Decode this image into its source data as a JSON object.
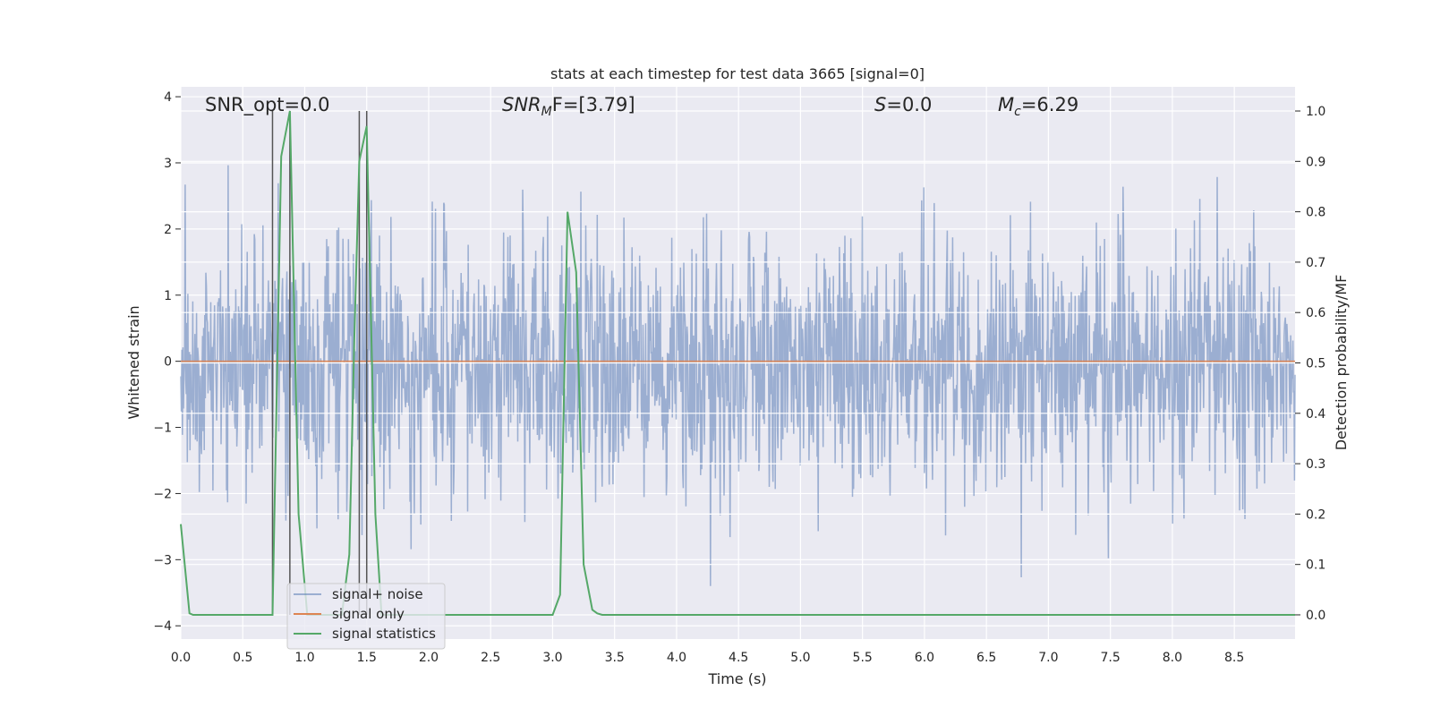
{
  "chart_data": {
    "type": "line",
    "title": "stats at each timestep for test data 3665 [signal=0]",
    "xlabel": "Time (s)",
    "ylabel": "Whitened strain",
    "y2label": "Detection probability/MF",
    "xlim": [
      0,
      8.99
    ],
    "ylim": [
      -4.2,
      4.15
    ],
    "y2lim": [
      -0.048,
      1.048
    ],
    "xticks": [
      "0.0",
      "0.5",
      "1.0",
      "1.5",
      "2.0",
      "2.5",
      "3.0",
      "3.5",
      "4.0",
      "4.5",
      "5.0",
      "5.5",
      "6.0",
      "6.5",
      "7.0",
      "7.5",
      "8.0",
      "8.5"
    ],
    "yticks": [
      "−4",
      "−3",
      "−2",
      "−1",
      "0",
      "1",
      "2",
      "3",
      "4"
    ],
    "y2ticks": [
      "0.0",
      "0.1",
      "0.2",
      "0.3",
      "0.4",
      "0.5",
      "0.6",
      "0.7",
      "0.8",
      "0.9",
      "1.0"
    ],
    "grid": true,
    "legend_position": "lower-left",
    "annotations": {
      "snr_opt": "SNR_opt=0.0",
      "snr_mf_prefix": "SNR",
      "snr_mf_sub": "M",
      "snr_mf_suffix": "F=[3.79]",
      "s_prefix": "S",
      "s_suffix": "=0.0",
      "mc_prefix": "M",
      "mc_sub": "c",
      "mc_suffix": "=6.29"
    },
    "series": [
      {
        "name": "signal+ noise",
        "color": "#4c72b0",
        "opacity": 0.5,
        "n_samples": 2048,
        "amplitude_std": 0.95
      },
      {
        "name": "signal only",
        "color": "#dd8452",
        "x": [
          0,
          8.99
        ],
        "y": [
          0,
          0
        ]
      },
      {
        "name": "signal statistics",
        "color": "#55a868",
        "axis": "right",
        "x": [
          0,
          0.07,
          0.1,
          0.15,
          0.2,
          0.25,
          0.3,
          0.35,
          0.4,
          0.45,
          0.5,
          0.55,
          0.6,
          0.65,
          0.7,
          0.74,
          0.81,
          0.88,
          0.95,
          1.02,
          1.1,
          1.15,
          1.2,
          1.25,
          1.3,
          1.36,
          1.4,
          1.44,
          1.5,
          1.57,
          1.62,
          1.7,
          2.0,
          2.5,
          2.9,
          3.0,
          3.06,
          3.12,
          3.19,
          3.25,
          3.32,
          3.36,
          3.4,
          4.0,
          5.0,
          6.0,
          7.0,
          8.0,
          8.99
        ],
        "y": [
          0.18,
          0.003,
          0.0,
          0.0,
          0.0,
          0.0,
          0.0,
          0.0,
          0.0,
          0.0,
          0.0,
          0.0,
          0.0,
          0.0,
          0.0,
          0.0,
          0.91,
          1.0,
          0.2,
          0.0,
          0.0,
          0.0,
          0.0,
          0.0,
          0.0,
          0.12,
          0.55,
          0.9,
          0.97,
          0.2,
          0.0,
          0.0,
          0.0,
          0.0,
          0.0,
          0.0,
          0.04,
          0.8,
          0.68,
          0.1,
          0.01,
          0.003,
          0.0,
          0.0,
          0.0,
          0.0,
          0.0,
          0.0,
          0.0
        ]
      }
    ],
    "vlines": [
      {
        "x": 0.74,
        "color": "#555555"
      },
      {
        "x": 0.88,
        "color": "#555555"
      },
      {
        "x": 1.44,
        "color": "#555555"
      },
      {
        "x": 1.5,
        "color": "#555555"
      }
    ],
    "background_color": "#eaeaf2",
    "grid_color": "#ffffff"
  }
}
